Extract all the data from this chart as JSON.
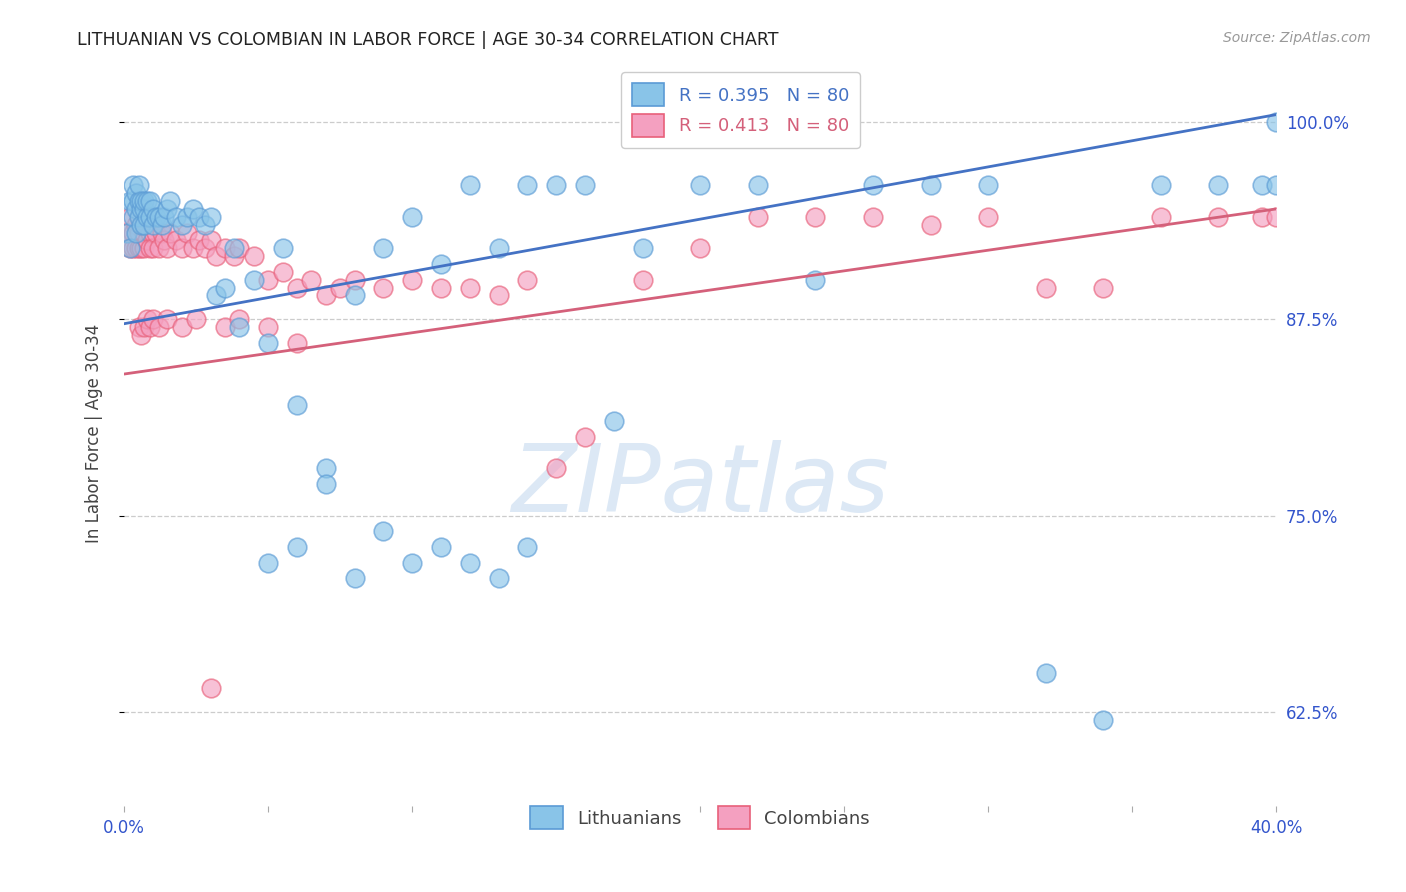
{
  "title": "LITHUANIAN VS COLOMBIAN IN LABOR FORCE | AGE 30-34 CORRELATION CHART",
  "source": "Source: ZipAtlas.com",
  "ylabel": "In Labor Force | Age 30-34",
  "ytick_labels": [
    "100.0%",
    "87.5%",
    "75.0%",
    "62.5%"
  ],
  "ytick_values": [
    1.0,
    0.875,
    0.75,
    0.625
  ],
  "xmin": 0.0,
  "xmax": 0.4,
  "ymin": 0.565,
  "ymax": 1.04,
  "R_blue": 0.395,
  "N_blue": 80,
  "R_pink": 0.413,
  "N_pink": 80,
  "blue_scatter_color": "#89c4e8",
  "blue_edge_color": "#5b9bd5",
  "pink_scatter_color": "#f4a0c0",
  "pink_edge_color": "#e8607a",
  "blue_line_color": "#4472c4",
  "pink_line_color": "#d4607a",
  "title_color": "#222222",
  "axis_label_color": "#444444",
  "tick_label_color": "#3355cc",
  "watermark_color": "#dce8f5",
  "legend_label_blue": "Lithuanians",
  "legend_label_pink": "Colombians",
  "blue_trend_x0": 0.0,
  "blue_trend_y0": 0.872,
  "blue_trend_x1": 0.4,
  "blue_trend_y1": 1.005,
  "pink_trend_x0": 0.0,
  "pink_trend_y0": 0.84,
  "pink_trend_x1": 0.4,
  "pink_trend_y1": 0.945,
  "blue_x": [
    0.001,
    0.002,
    0.002,
    0.003,
    0.003,
    0.003,
    0.004,
    0.004,
    0.004,
    0.005,
    0.005,
    0.005,
    0.006,
    0.006,
    0.006,
    0.007,
    0.007,
    0.007,
    0.008,
    0.008,
    0.009,
    0.009,
    0.01,
    0.01,
    0.011,
    0.012,
    0.013,
    0.014,
    0.015,
    0.016,
    0.018,
    0.02,
    0.022,
    0.024,
    0.026,
    0.028,
    0.03,
    0.032,
    0.035,
    0.038,
    0.04,
    0.045,
    0.05,
    0.055,
    0.06,
    0.07,
    0.08,
    0.09,
    0.1,
    0.11,
    0.12,
    0.13,
    0.14,
    0.15,
    0.16,
    0.17,
    0.18,
    0.2,
    0.22,
    0.24,
    0.26,
    0.28,
    0.3,
    0.32,
    0.34,
    0.36,
    0.38,
    0.395,
    0.4,
    0.4,
    0.05,
    0.06,
    0.07,
    0.08,
    0.09,
    0.1,
    0.11,
    0.12,
    0.13,
    0.14
  ],
  "blue_y": [
    0.93,
    0.95,
    0.92,
    0.94,
    0.95,
    0.96,
    0.945,
    0.955,
    0.93,
    0.94,
    0.95,
    0.96,
    0.945,
    0.935,
    0.95,
    0.945,
    0.935,
    0.95,
    0.94,
    0.95,
    0.94,
    0.95,
    0.935,
    0.945,
    0.94,
    0.94,
    0.935,
    0.94,
    0.945,
    0.95,
    0.94,
    0.935,
    0.94,
    0.945,
    0.94,
    0.935,
    0.94,
    0.89,
    0.895,
    0.92,
    0.87,
    0.9,
    0.86,
    0.92,
    0.82,
    0.78,
    0.89,
    0.92,
    0.94,
    0.91,
    0.96,
    0.92,
    0.96,
    0.96,
    0.96,
    0.81,
    0.92,
    0.96,
    0.96,
    0.9,
    0.96,
    0.96,
    0.96,
    0.65,
    0.62,
    0.96,
    0.96,
    0.96,
    0.96,
    1.0,
    0.72,
    0.73,
    0.77,
    0.71,
    0.74,
    0.72,
    0.73,
    0.72,
    0.71,
    0.73
  ],
  "pink_x": [
    0.001,
    0.002,
    0.002,
    0.003,
    0.003,
    0.004,
    0.004,
    0.005,
    0.005,
    0.006,
    0.006,
    0.007,
    0.007,
    0.008,
    0.008,
    0.009,
    0.009,
    0.01,
    0.01,
    0.011,
    0.012,
    0.013,
    0.014,
    0.015,
    0.016,
    0.018,
    0.02,
    0.022,
    0.024,
    0.026,
    0.028,
    0.03,
    0.032,
    0.035,
    0.038,
    0.04,
    0.045,
    0.05,
    0.055,
    0.06,
    0.065,
    0.07,
    0.075,
    0.08,
    0.09,
    0.1,
    0.11,
    0.12,
    0.13,
    0.14,
    0.15,
    0.16,
    0.18,
    0.2,
    0.22,
    0.24,
    0.26,
    0.28,
    0.3,
    0.32,
    0.34,
    0.36,
    0.38,
    0.395,
    0.4,
    0.005,
    0.006,
    0.007,
    0.008,
    0.009,
    0.01,
    0.012,
    0.015,
    0.02,
    0.025,
    0.03,
    0.035,
    0.04,
    0.05,
    0.06
  ],
  "pink_y": [
    0.93,
    0.92,
    0.94,
    0.93,
    0.92,
    0.935,
    0.92,
    0.93,
    0.92,
    0.935,
    0.92,
    0.93,
    0.92,
    0.935,
    0.925,
    0.93,
    0.92,
    0.93,
    0.92,
    0.93,
    0.92,
    0.93,
    0.925,
    0.92,
    0.93,
    0.925,
    0.92,
    0.93,
    0.92,
    0.925,
    0.92,
    0.925,
    0.915,
    0.92,
    0.915,
    0.92,
    0.915,
    0.9,
    0.905,
    0.895,
    0.9,
    0.89,
    0.895,
    0.9,
    0.895,
    0.9,
    0.895,
    0.895,
    0.89,
    0.9,
    0.78,
    0.8,
    0.9,
    0.92,
    0.94,
    0.94,
    0.94,
    0.935,
    0.94,
    0.895,
    0.895,
    0.94,
    0.94,
    0.94,
    0.94,
    0.87,
    0.865,
    0.87,
    0.875,
    0.87,
    0.875,
    0.87,
    0.875,
    0.87,
    0.875,
    0.64,
    0.87,
    0.875,
    0.87,
    0.86
  ]
}
